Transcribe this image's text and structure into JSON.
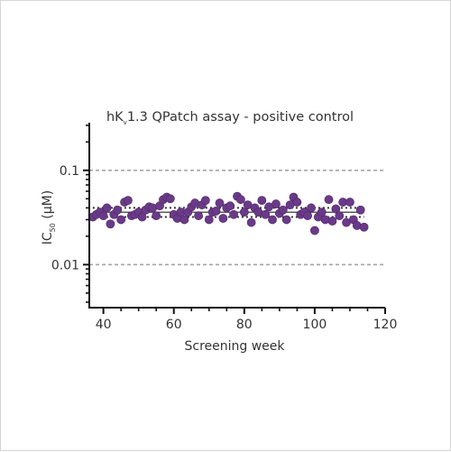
{
  "chart_data": {
    "type": "scatter",
    "title_main": "hK",
    "title_sub": "v",
    "title_rest": "1.3 QPatch assay - positive control",
    "xlabel": "Screening week",
    "ylabel_main": "IC",
    "ylabel_sub": "50",
    "ylabel_rest": " (μM)",
    "x_ticks": [
      40,
      60,
      80,
      100,
      120
    ],
    "x_tick_labels": [
      "40",
      "60",
      "80",
      "100",
      "120"
    ],
    "y_ticks": [
      0.1,
      0.01
    ],
    "y_tick_labels": [
      "0.1",
      "0.01"
    ],
    "xlim": [
      36,
      120
    ],
    "ylim": [
      0.0035,
      0.32
    ],
    "y_scale": "log",
    "grid": false,
    "reference_lines": [
      0.1,
      0.01
    ],
    "mean_line": 0.036,
    "sd_lines": [
      0.032,
      0.04
    ],
    "colors": {
      "points": "#6a3a88",
      "points_edge": "#4f2868",
      "reference_lines": "#a6a6a6",
      "mean_line": "#222222",
      "sd_lines": "#333333",
      "axis": "#111111"
    },
    "points": [
      {
        "x": 37,
        "y": 0.032
      },
      {
        "x": 38,
        "y": 0.034
      },
      {
        "x": 39,
        "y": 0.036
      },
      {
        "x": 40,
        "y": 0.033
      },
      {
        "x": 41,
        "y": 0.04
      },
      {
        "x": 42,
        "y": 0.027
      },
      {
        "x": 43,
        "y": 0.034
      },
      {
        "x": 44,
        "y": 0.038
      },
      {
        "x": 45,
        "y": 0.03
      },
      {
        "x": 46,
        "y": 0.046
      },
      {
        "x": 47,
        "y": 0.048
      },
      {
        "x": 48,
        "y": 0.033
      },
      {
        "x": 49,
        "y": 0.034
      },
      {
        "x": 50,
        "y": 0.036
      },
      {
        "x": 51,
        "y": 0.032
      },
      {
        "x": 52,
        "y": 0.038
      },
      {
        "x": 53,
        "y": 0.041
      },
      {
        "x": 54,
        "y": 0.04
      },
      {
        "x": 55,
        "y": 0.033
      },
      {
        "x": 56,
        "y": 0.042
      },
      {
        "x": 57,
        "y": 0.049
      },
      {
        "x": 58,
        "y": 0.052
      },
      {
        "x": 59,
        "y": 0.05
      },
      {
        "x": 60,
        "y": 0.034
      },
      {
        "x": 61,
        "y": 0.031
      },
      {
        "x": 62,
        "y": 0.036
      },
      {
        "x": 63,
        "y": 0.03
      },
      {
        "x": 64,
        "y": 0.036
      },
      {
        "x": 65,
        "y": 0.041
      },
      {
        "x": 66,
        "y": 0.045
      },
      {
        "x": 67,
        "y": 0.033
      },
      {
        "x": 68,
        "y": 0.043
      },
      {
        "x": 69,
        "y": 0.048
      },
      {
        "x": 70,
        "y": 0.03
      },
      {
        "x": 71,
        "y": 0.036
      },
      {
        "x": 72,
        "y": 0.037
      },
      {
        "x": 73,
        "y": 0.045
      },
      {
        "x": 74,
        "y": 0.031
      },
      {
        "x": 75,
        "y": 0.04
      },
      {
        "x": 76,
        "y": 0.042
      },
      {
        "x": 77,
        "y": 0.034
      },
      {
        "x": 78,
        "y": 0.053
      },
      {
        "x": 79,
        "y": 0.049
      },
      {
        "x": 80,
        "y": 0.036
      },
      {
        "x": 81,
        "y": 0.043
      },
      {
        "x": 82,
        "y": 0.028
      },
      {
        "x": 83,
        "y": 0.04
      },
      {
        "x": 84,
        "y": 0.036
      },
      {
        "x": 85,
        "y": 0.048
      },
      {
        "x": 86,
        "y": 0.034
      },
      {
        "x": 87,
        "y": 0.041
      },
      {
        "x": 88,
        "y": 0.03
      },
      {
        "x": 89,
        "y": 0.044
      },
      {
        "x": 90,
        "y": 0.035
      },
      {
        "x": 91,
        "y": 0.038
      },
      {
        "x": 92,
        "y": 0.03
      },
      {
        "x": 93,
        "y": 0.043
      },
      {
        "x": 94,
        "y": 0.052
      },
      {
        "x": 95,
        "y": 0.046
      },
      {
        "x": 96,
        "y": 0.034
      },
      {
        "x": 97,
        "y": 0.036
      },
      {
        "x": 98,
        "y": 0.033
      },
      {
        "x": 99,
        "y": 0.04
      },
      {
        "x": 100,
        "y": 0.023
      },
      {
        "x": 101,
        "y": 0.032
      },
      {
        "x": 102,
        "y": 0.036
      },
      {
        "x": 103,
        "y": 0.03
      },
      {
        "x": 104,
        "y": 0.049
      },
      {
        "x": 105,
        "y": 0.029
      },
      {
        "x": 106,
        "y": 0.039
      },
      {
        "x": 107,
        "y": 0.033
      },
      {
        "x": 108,
        "y": 0.046
      },
      {
        "x": 109,
        "y": 0.028
      },
      {
        "x": 110,
        "y": 0.046
      },
      {
        "x": 111,
        "y": 0.03
      },
      {
        "x": 112,
        "y": 0.026
      },
      {
        "x": 113,
        "y": 0.038
      },
      {
        "x": 114,
        "y": 0.025
      }
    ]
  }
}
